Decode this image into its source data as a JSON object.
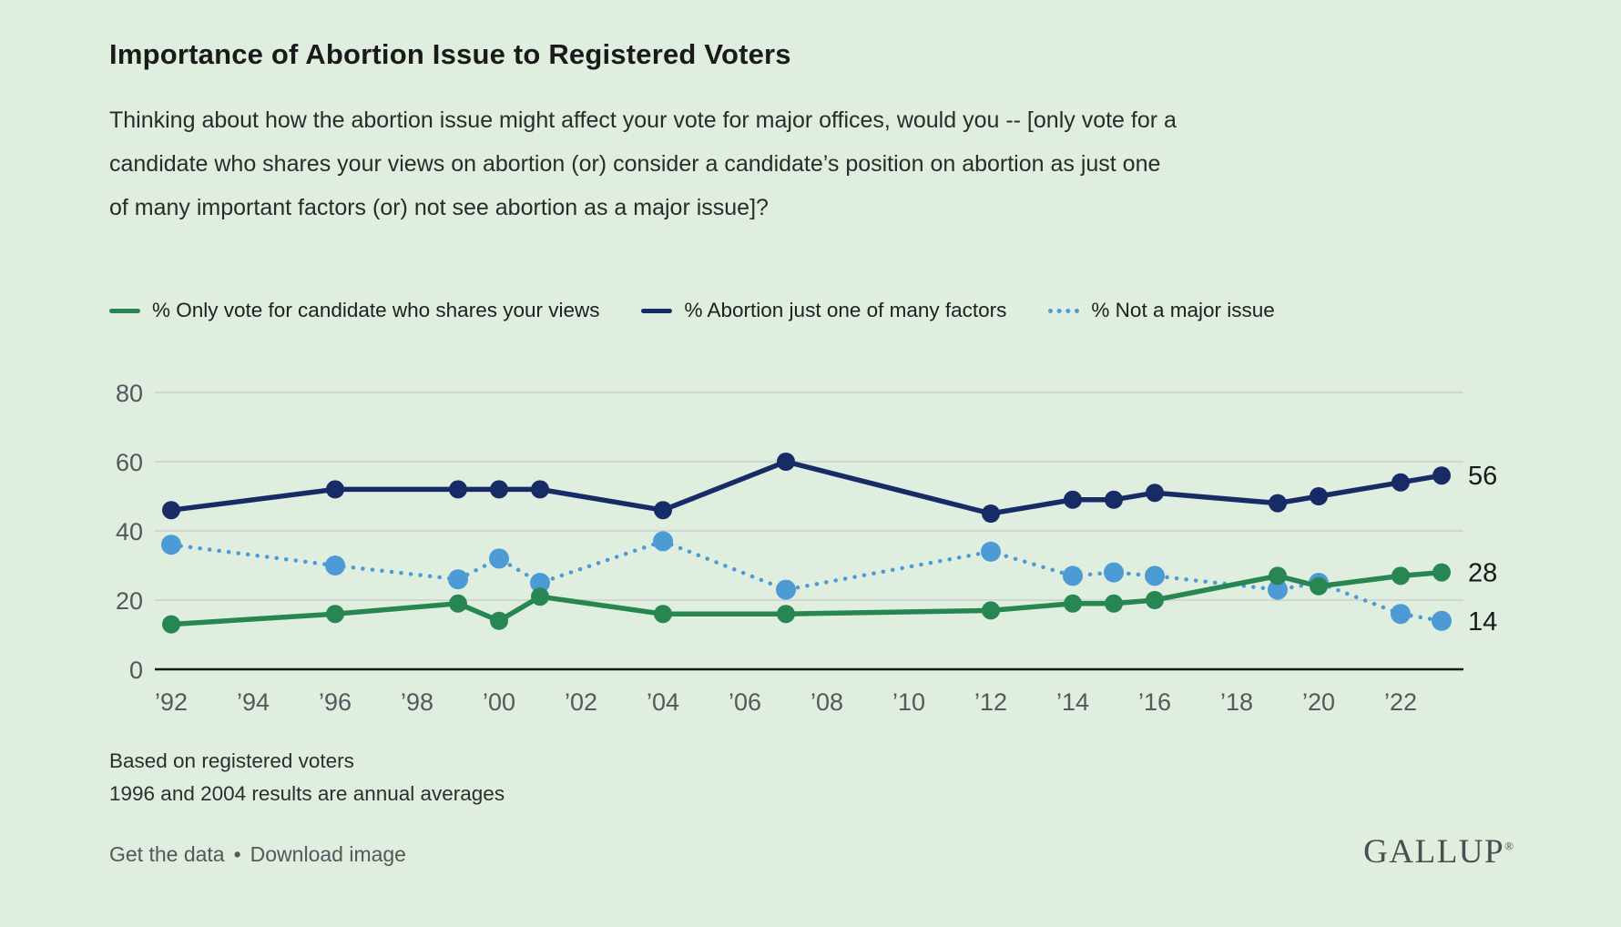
{
  "page": {
    "title": "Importance of Abortion Issue to Registered Voters",
    "subtitle": "Thinking about how the abortion issue might affect your vote for major offices, would you -- [only vote for a\ncandidate who shares your views on abortion (or) consider a candidate’s position on abortion as just one\nof many important factors (or) not see abortion as a major issue]?"
  },
  "legend": [
    {
      "label": "% Only vote for candidate who shares your views",
      "color": "#278651",
      "style": "solid"
    },
    {
      "label": "% Abortion just one of many factors",
      "color": "#172C66",
      "style": "solid"
    },
    {
      "label": "% Not a major issue",
      "color": "#4D9BD5",
      "style": "dotted"
    }
  ],
  "chart_data": {
    "type": "line",
    "title": "Importance of Abortion Issue to Registered Voters",
    "x": [
      1992,
      1996,
      1999,
      2000,
      2001,
      2004,
      2007,
      2012,
      2014,
      2015,
      2016,
      2019,
      2020,
      2022,
      2023
    ],
    "series": [
      {
        "name": "% Only vote for candidate who shares your views",
        "color": "#278651",
        "style": "solid",
        "values": [
          13,
          16,
          19,
          14,
          21,
          16,
          16,
          17,
          19,
          19,
          20,
          27,
          24,
          27,
          28
        ],
        "end_label": "28"
      },
      {
        "name": "% Abortion just one of many factors",
        "color": "#172C66",
        "style": "solid",
        "values": [
          46,
          52,
          52,
          52,
          52,
          46,
          60,
          45,
          49,
          49,
          51,
          48,
          50,
          54,
          56
        ],
        "end_label": "56"
      },
      {
        "name": "% Not a major issue",
        "color": "#4D9BD5",
        "style": "dotted",
        "values": [
          36,
          30,
          26,
          32,
          25,
          37,
          23,
          34,
          27,
          28,
          27,
          23,
          25,
          16,
          14
        ],
        "end_label": "14"
      }
    ],
    "y_ticks": [
      0,
      20,
      40,
      60,
      80
    ],
    "x_ticks": [
      {
        "label": "’92",
        "year": 1992
      },
      {
        "label": "’94",
        "year": 1994
      },
      {
        "label": "’96",
        "year": 1996
      },
      {
        "label": "’98",
        "year": 1998
      },
      {
        "label": "’00",
        "year": 2000
      },
      {
        "label": "’02",
        "year": 2002
      },
      {
        "label": "’04",
        "year": 2004
      },
      {
        "label": "’06",
        "year": 2006
      },
      {
        "label": "’08",
        "year": 2008
      },
      {
        "label": "’10",
        "year": 2010
      },
      {
        "label": "’12",
        "year": 2012
      },
      {
        "label": "’14",
        "year": 2014
      },
      {
        "label": "’16",
        "year": 2016
      },
      {
        "label": "’18",
        "year": 2018
      },
      {
        "label": "’20",
        "year": 2020
      },
      {
        "label": "’22",
        "year": 2022
      }
    ],
    "ylim": [
      0,
      88
    ],
    "xlim": [
      1992,
      2023
    ],
    "grid": true,
    "legend_position": "top",
    "background_color": "#DFEEDF",
    "gridline_color": "#c9d0c9",
    "axis_color": "#191919",
    "tick_label_color": "#55585c"
  },
  "footnotes": [
    "Based on registered voters",
    "1996 and 2004 results are annual averages"
  ],
  "links": {
    "get_data": "Get the data",
    "separator": "•",
    "download": "Download image"
  },
  "brand": {
    "logo": "GALLUP",
    "registered": "®"
  }
}
